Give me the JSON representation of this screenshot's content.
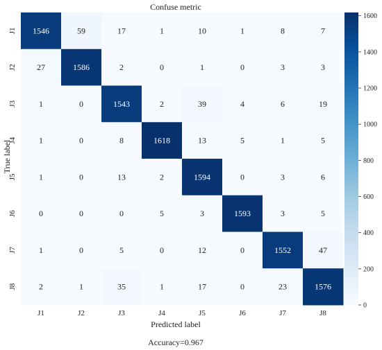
{
  "chart_data": {
    "type": "heatmap",
    "title": "Confuse metric",
    "xlabel": "Predicted label",
    "ylabel": "True label",
    "x_categories": [
      "J1",
      "J2",
      "J3",
      "J4",
      "J5",
      "J6",
      "J7",
      "J8"
    ],
    "y_categories": [
      "J1",
      "J2",
      "J3",
      "J4",
      "J5",
      "J6",
      "J7",
      "J8"
    ],
    "values": [
      [
        1546,
        59,
        17,
        1,
        10,
        1,
        8,
        7
      ],
      [
        27,
        1586,
        2,
        0,
        1,
        0,
        3,
        3
      ],
      [
        1,
        0,
        1543,
        2,
        39,
        4,
        6,
        19
      ],
      [
        1,
        0,
        8,
        1618,
        13,
        5,
        1,
        5
      ],
      [
        1,
        0,
        13,
        2,
        1594,
        0,
        3,
        6
      ],
      [
        0,
        0,
        0,
        5,
        3,
        1593,
        3,
        5
      ],
      [
        1,
        0,
        5,
        0,
        12,
        0,
        1552,
        47
      ],
      [
        2,
        1,
        35,
        1,
        17,
        0,
        23,
        1576
      ]
    ],
    "colorbar": {
      "range": [
        0,
        1618
      ],
      "ticks": [
        0,
        200,
        400,
        600,
        800,
        1000,
        1200,
        1400,
        1600
      ],
      "colormap": "Blues"
    },
    "colors": {
      "low": "#f7fbff",
      "high": "#08306b"
    },
    "annotation": "Accuracy=0.967"
  }
}
